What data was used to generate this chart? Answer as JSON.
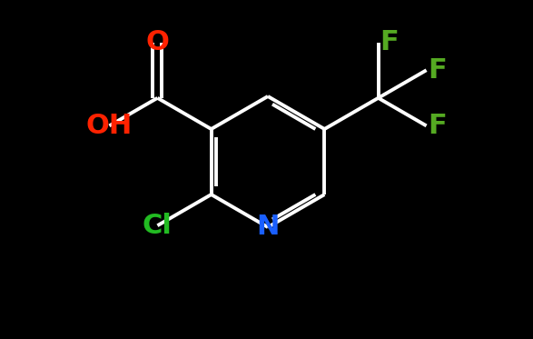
{
  "background_color": "#000000",
  "bond_color": "#ffffff",
  "bond_width": 2.8,
  "atoms": {
    "N": {
      "color": "#1a5fff",
      "fontsize": 22
    },
    "O": {
      "color": "#ff2200",
      "fontsize": 22
    },
    "Cl": {
      "color": "#22bb22",
      "fontsize": 22
    },
    "F": {
      "color": "#55aa22",
      "fontsize": 22
    },
    "OH": {
      "color": "#ff2200",
      "fontsize": 22
    }
  },
  "figsize": [
    5.87,
    3.73
  ],
  "dpi": 100
}
